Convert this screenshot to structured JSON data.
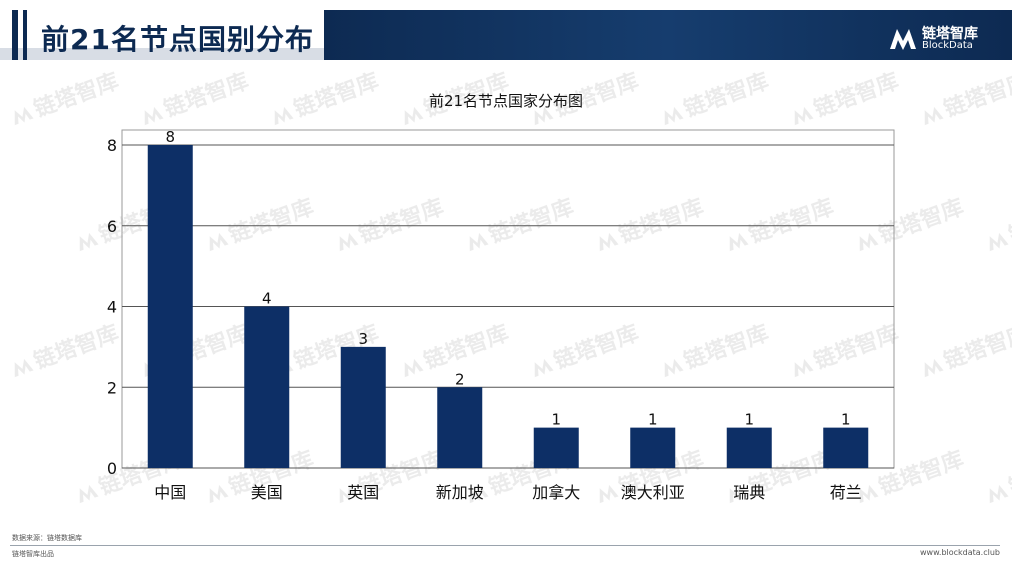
{
  "header": {
    "title": "前21名节点国别分布",
    "brand_name": "链塔智库",
    "brand_sub": "BlockData",
    "color_primary": "#0d2a52"
  },
  "watermark": {
    "text": "链塔智库"
  },
  "chart_data": {
    "type": "bar",
    "title": "前21名节点国家分布图",
    "categories": [
      "中国",
      "美国",
      "英国",
      "新加坡",
      "加拿大",
      "澳大利亚",
      "瑞典",
      "荷兰"
    ],
    "values": [
      8,
      4,
      3,
      2,
      1,
      1,
      1,
      1
    ],
    "data_labels": [
      "8",
      "4",
      "3",
      "2",
      "1",
      "1",
      "1",
      "1"
    ],
    "y_ticks": [
      "0",
      "2",
      "4",
      "6",
      "8"
    ],
    "ylim": [
      0,
      8
    ],
    "grid": true,
    "legend": "none",
    "bar_color": "#0d2f66"
  },
  "footer": {
    "source": "数据来源：链塔数据库",
    "left": "链塔智库出品",
    "right": "www.blockdata.club"
  }
}
